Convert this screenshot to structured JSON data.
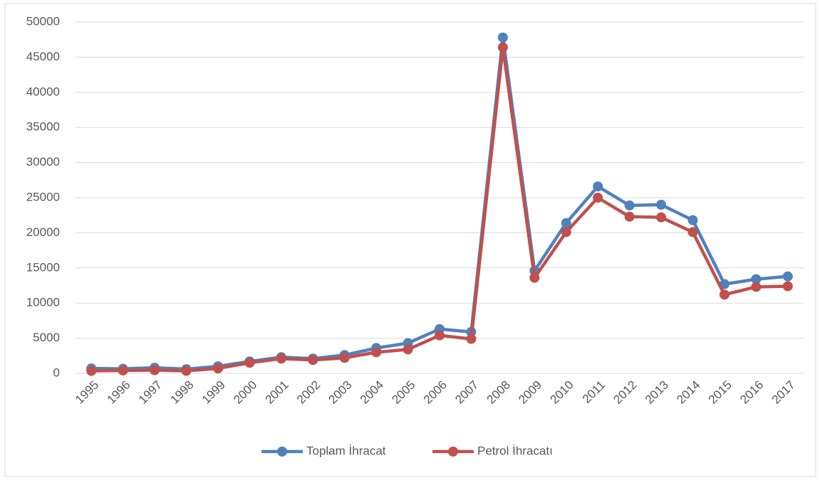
{
  "chart_data": {
    "type": "line",
    "categories": [
      "1995",
      "1996",
      "1997",
      "1998",
      "1999",
      "2000",
      "2001",
      "2002",
      "2003",
      "2004",
      "2005",
      "2006",
      "2007",
      "2008",
      "2009",
      "2010",
      "2011",
      "2012",
      "2013",
      "2014",
      "2015",
      "2016",
      "2017"
    ],
    "series": [
      {
        "name": "Toplam İhracat",
        "color": "#4f81bd",
        "values": [
          700,
          650,
          800,
          600,
          1000,
          1700,
          2300,
          2100,
          2600,
          3600,
          4300,
          6300,
          5900,
          47800,
          14600,
          21400,
          26600,
          23900,
          24000,
          21800,
          12700,
          13400,
          13800
        ]
      },
      {
        "name": "Petrol İhracatı",
        "color": "#c0504d",
        "values": [
          350,
          400,
          450,
          350,
          700,
          1500,
          2100,
          1900,
          2200,
          3000,
          3400,
          5400,
          4900,
          46400,
          13600,
          20100,
          25000,
          22300,
          22200,
          20100,
          11200,
          12300,
          12400
        ]
      }
    ],
    "ylim": [
      0,
      50000
    ],
    "yticks": [
      0,
      5000,
      10000,
      15000,
      20000,
      25000,
      30000,
      35000,
      40000,
      45000,
      50000
    ],
    "grid": true,
    "legend": "bottom"
  }
}
